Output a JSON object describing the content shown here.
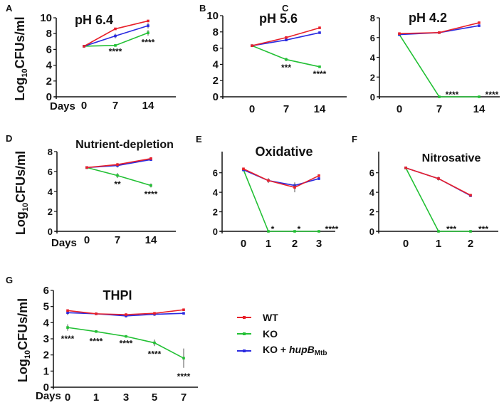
{
  "y_label": {
    "main": "Log",
    "sub": "10",
    "rest": "CFUs/ml"
  },
  "days_label": "Days",
  "colors": {
    "WT": "#e8202a",
    "KO": "#22c034",
    "KO_comp": "#2a2ae0"
  },
  "legend": {
    "placement": "right of panel G",
    "items": [
      {
        "key": "WT",
        "label": "WT"
      },
      {
        "key": "KO",
        "label": "KO"
      },
      {
        "key": "KO_comp",
        "label": "KO + ",
        "italic": "hupB",
        "sub": "Mtb"
      }
    ]
  },
  "chart_data": [
    {
      "id": "A",
      "letter": "A",
      "type": "line",
      "title": "pH 6.4",
      "xlabel": "Days",
      "ylabel": "Log10CFUs/ml",
      "x": [
        "0",
        "7",
        "14"
      ],
      "ylim": [
        0,
        10
      ],
      "yticks": [
        0,
        2,
        4,
        6,
        8,
        10
      ],
      "grid": false,
      "series": {
        "WT": [
          6.4,
          8.6,
          9.6
        ],
        "KO_comp": [
          6.4,
          7.7,
          9.0
        ],
        "KO": [
          6.4,
          6.5,
          8.1
        ]
      },
      "errors": {
        "WT": [
          0.05,
          0.1,
          0.1
        ],
        "KO_comp": [
          0.05,
          0.3,
          0.35
        ],
        "KO": [
          0.05,
          0.1,
          0.35
        ]
      },
      "significance": [
        {
          "x": "7",
          "label": "****",
          "y": 5.8
        },
        {
          "x": "14",
          "label": "****",
          "y": 7.0
        }
      ]
    },
    {
      "id": "B",
      "letter": "B",
      "type": "line",
      "title": "pH 5.6",
      "x": [
        "0",
        "7",
        "14"
      ],
      "ylim": [
        0,
        10
      ],
      "yticks": [
        0,
        2,
        4,
        6,
        8,
        10
      ],
      "grid": false,
      "series": {
        "WT": [
          6.3,
          7.3,
          8.5
        ],
        "KO_comp": [
          6.3,
          7.0,
          7.9
        ],
        "KO": [
          6.3,
          4.6,
          3.7
        ]
      },
      "errors": {
        "WT": [
          0.1,
          0.15,
          0.05
        ],
        "KO_comp": [
          0.1,
          0.1,
          0.05
        ],
        "KO": [
          0.1,
          0.2,
          0.05
        ]
      },
      "significance": [
        {
          "x": "7",
          "label": "***",
          "y": 3.7
        },
        {
          "x": "14",
          "label": "****",
          "y": 2.9
        }
      ]
    },
    {
      "id": "C",
      "letter": "C",
      "type": "line",
      "title": "pH 4.2",
      "x": [
        "0",
        "7",
        "14"
      ],
      "ylim": [
        0,
        8
      ],
      "yticks": [
        0,
        2,
        4,
        6,
        8
      ],
      "grid": false,
      "series": {
        "WT": [
          6.4,
          6.5,
          7.5
        ],
        "KO_comp": [
          6.3,
          6.5,
          7.2
        ],
        "KO": [
          6.3,
          0,
          0
        ]
      },
      "errors": {
        "WT": [
          0.1,
          0.05,
          0.1
        ],
        "KO_comp": [
          0.1,
          0.05,
          0.1
        ],
        "KO": [
          0.1,
          0,
          0
        ]
      },
      "significance": [
        {
          "x": "7",
          "label": "****",
          "y": 0.3
        },
        {
          "x": "14",
          "label": "****",
          "y": 0.3
        }
      ]
    },
    {
      "id": "D",
      "letter": "D",
      "type": "line",
      "title": "Nutrient-depletion",
      "xlabel": "Days",
      "ylabel": "Log10CFUs/ml",
      "x": [
        "0",
        "7",
        "14"
      ],
      "ylim": [
        0,
        8
      ],
      "yticks": [
        0,
        2,
        4,
        6,
        8
      ],
      "grid": false,
      "series": {
        "WT": [
          6.4,
          6.7,
          7.3
        ],
        "KO_comp": [
          6.4,
          6.6,
          7.2
        ],
        "KO": [
          6.4,
          5.6,
          4.6
        ]
      },
      "errors": {
        "WT": [
          0.1,
          0.15,
          0.1
        ],
        "KO_comp": [
          0.1,
          0.2,
          0.1
        ],
        "KO": [
          0.1,
          0.25,
          0.2
        ]
      },
      "significance": [
        {
          "x": "7",
          "label": "**",
          "y": 4.8
        },
        {
          "x": "14",
          "label": "****",
          "y": 3.8
        }
      ]
    },
    {
      "id": "E",
      "letter": "E",
      "type": "line",
      "title": "Oxidative",
      "x": [
        "0",
        "1",
        "2",
        "3"
      ],
      "ylim": [
        0,
        7
      ],
      "yticks": [
        0,
        2,
        4,
        6
      ],
      "grid": false,
      "series": {
        "WT": [
          6.4,
          5.2,
          4.5,
          5.7
        ],
        "KO_comp": [
          6.3,
          5.2,
          4.7,
          5.4
        ],
        "KO": [
          6.3,
          0,
          0,
          0
        ]
      },
      "errors": {
        "WT": [
          0.1,
          0.25,
          0.5,
          0.15
        ],
        "KO_comp": [
          0.1,
          0.2,
          0.3,
          0.15
        ],
        "KO": [
          0.1,
          0,
          0,
          0
        ]
      },
      "significance": [
        {
          "x": "1",
          "label": "*",
          "y": 0.3
        },
        {
          "x": "2",
          "label": "*",
          "y": 0.3
        },
        {
          "x": "3",
          "label": "****",
          "y": 0.3
        }
      ]
    },
    {
      "id": "F",
      "letter": "F",
      "type": "line",
      "title": "Nitrosative",
      "x": [
        "0",
        "1",
        "2"
      ],
      "ylim": [
        0,
        7
      ],
      "yticks": [
        0,
        2,
        4,
        6
      ],
      "grid": false,
      "series": {
        "WT": [
          6.5,
          5.4,
          3.7
        ],
        "KO_comp": [
          6.5,
          5.4,
          3.65
        ],
        "KO": [
          6.5,
          0,
          0
        ]
      },
      "errors": {
        "WT": [
          0.05,
          0.2,
          0.1
        ],
        "KO_comp": [
          0.05,
          0.2,
          0.1
        ],
        "KO": [
          0.05,
          0,
          0
        ]
      },
      "significance": [
        {
          "x": "1",
          "label": "***",
          "y": 0.3
        },
        {
          "x": "2",
          "label": "***",
          "y": 0.3
        }
      ]
    },
    {
      "id": "G",
      "letter": "G",
      "type": "line",
      "title": "THPI",
      "xlabel": "Days",
      "ylabel": "Log10CFUs/ml",
      "x": [
        "0",
        "1",
        "3",
        "5",
        "7"
      ],
      "ylim": [
        0,
        6
      ],
      "yticks": [
        0,
        1,
        2,
        3,
        4,
        5,
        6
      ],
      "grid": false,
      "series": {
        "WT": [
          4.75,
          4.55,
          4.5,
          4.58,
          4.8
        ],
        "KO_comp": [
          4.62,
          4.55,
          4.42,
          4.52,
          4.58
        ],
        "KO": [
          3.7,
          3.45,
          3.15,
          2.75,
          1.8
        ]
      },
      "errors": {
        "WT": [
          0.05,
          0.05,
          0.05,
          0.05,
          0.05
        ],
        "KO_comp": [
          0.15,
          0.05,
          0.1,
          0.1,
          0.05
        ],
        "KO": [
          0.2,
          0.03,
          0.07,
          0.2,
          0.6
        ]
      },
      "significance": [
        {
          "x": "0",
          "label": "****",
          "y": 3.05
        },
        {
          "x": "1",
          "label": "****",
          "y": 2.9
        },
        {
          "x": "3",
          "label": "****",
          "y": 2.75
        },
        {
          "x": "5",
          "label": "****",
          "y": 2.1
        },
        {
          "x": "7",
          "label": "****",
          "y": 0.7
        }
      ]
    }
  ]
}
